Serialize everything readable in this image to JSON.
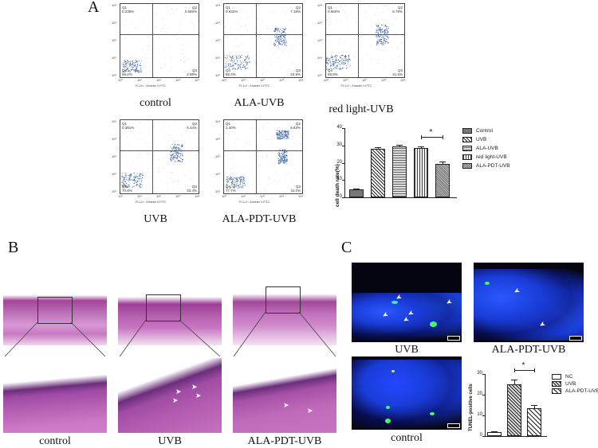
{
  "figure": {
    "panels": {
      "A": {
        "letter": "A",
        "flow_cytometry": [
          {
            "label": "control",
            "Q1": "0.238%",
            "Q2": "0.565%",
            "Q3": "2.98%",
            "Q4": "96.2%",
            "q1_name": "Q1",
            "q2_name": "Q2",
            "q3_name": "Q3",
            "q4_name": "Q4"
          },
          {
            "label": "ALA-UVB",
            "Q1": "0.632%",
            "Q2": "7.18%",
            "Q3": "22.8%",
            "Q4": "69.4%",
            "q1_name": "Q1",
            "q2_name": "Q2",
            "q3_name": "Q3",
            "q4_name": "Q4"
          },
          {
            "label": "red light-UVB",
            "Q1": "0.660%",
            "Q2": "6.79%",
            "Q3": "21.5%",
            "Q4": "69.8%",
            "q1_name": "Q1",
            "q2_name": "Q2",
            "q3_name": "Q3",
            "q4_name": "Q4"
          },
          {
            "label": "UVB",
            "Q1": "0.381%",
            "Q2": "5.44%",
            "Q3": "23.4%",
            "Q4": "70.8%",
            "q1_name": "Q1",
            "q2_name": "Q2",
            "q3_name": "Q3",
            "q4_name": "Q4"
          },
          {
            "label": "ALA-PDT-UVB",
            "Q1": "1.40%",
            "Q2": "8.63%",
            "Q3": "11.0%",
            "Q4": "77.7%",
            "q1_name": "Q1",
            "q2_name": "Q2",
            "q3_name": "Q3",
            "q4_name": "Q4"
          }
        ],
        "axis": {
          "x_label": "FL1-H :: Annexin V-FITC",
          "y_label": "FL3-H :: PI",
          "ticks": [
            "10⁰",
            "10¹",
            "10²",
            "10³",
            "10⁴"
          ]
        }
      },
      "B": {
        "letter": "B",
        "images": [
          {
            "label": "control"
          },
          {
            "label": "UVB"
          },
          {
            "label": "ALA-PDT-UVB"
          }
        ]
      },
      "C": {
        "letter": "C",
        "images": [
          {
            "label": "UVB"
          },
          {
            "label": "ALA-PDT-UVB"
          },
          {
            "label": "control"
          }
        ]
      }
    },
    "colors": {
      "he_stain": "#b05aa8",
      "fluor_bg": "#050510",
      "dapi_blue": "#1a3cff",
      "tunel_green": "#3cff6a"
    }
  },
  "chart_data": [
    {
      "type": "bar",
      "title": "",
      "xlabel": "",
      "ylabel": "cell death rate(%)",
      "ylim": [
        0,
        40
      ],
      "yticks": [
        "0",
        "10",
        "20",
        "30",
        "40"
      ],
      "categories": [
        "Control",
        "UVB",
        "ALA-UVB",
        "red light-UVB",
        "ALA-PDT-UVB"
      ],
      "values": [
        4.5,
        28,
        29.5,
        28.5,
        19.5
      ],
      "errors": [
        0.5,
        0.8,
        1.0,
        0.8,
        1.2
      ],
      "legend": [
        "Control",
        "UVB",
        "ALA-UVB",
        "red light-UVB",
        "ALA-PDT-UVB"
      ],
      "legend_position": "right",
      "grid": false,
      "annotation": {
        "text": "*",
        "between": [
          "red light-UVB",
          "ALA-PDT-UVB"
        ]
      }
    },
    {
      "type": "bar",
      "title": "",
      "xlabel": "",
      "ylabel": "TUNEL-positive cells",
      "ylim": [
        0,
        30
      ],
      "yticks": [
        "0",
        "10",
        "20",
        "30"
      ],
      "categories": [
        "NC",
        "UVB",
        "ALA-PDT-UVB"
      ],
      "values": [
        1.8,
        25,
        13.5
      ],
      "errors": [
        0.7,
        2.5,
        1.5
      ],
      "legend": [
        "NC",
        "UVB",
        "ALA-PDT-UVB"
      ],
      "legend_position": "right",
      "grid": false,
      "annotation": {
        "text": "*",
        "between": [
          "UVB",
          "ALA-PDT-UVB"
        ]
      }
    }
  ]
}
